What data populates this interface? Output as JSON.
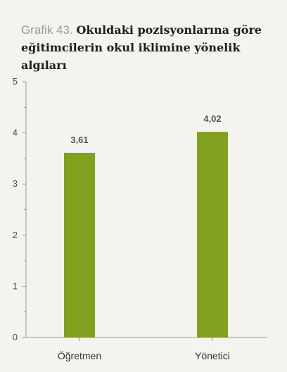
{
  "title_prefix": "Grafik 43.",
  "title_text": "Okuldaki pozisyonlarına göre eğitimcilerin okul iklimine yönelik algıları",
  "colors": {
    "background": "#f4f3ef",
    "bar": "#80a01e",
    "axis": "#9a9a9a"
  },
  "chart_data": {
    "type": "bar",
    "title": "Grafik 43. Okuldaki pozisyonlarına göre eğitimcilerin okul iklimine yönelik algıları",
    "categories": [
      "Öğretmen",
      "Yönetici"
    ],
    "values": [
      3.61,
      4.02
    ],
    "value_labels": [
      "3,61",
      "4,02"
    ],
    "yticks": [
      "0",
      "1",
      "2",
      "3",
      "4",
      "5"
    ],
    "ylim": [
      0,
      5
    ],
    "grid": false,
    "legend": "none"
  }
}
